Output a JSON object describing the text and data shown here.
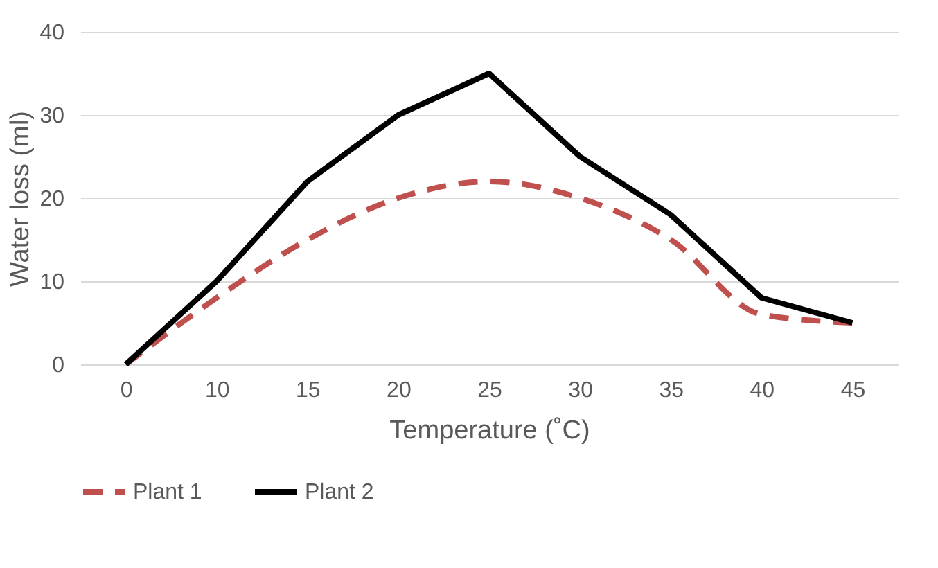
{
  "chart_data": {
    "type": "line",
    "xlabel": "Temperature (˚C)",
    "ylabel": "Water loss (ml)",
    "categories": [
      "0",
      "10",
      "15",
      "20",
      "25",
      "30",
      "35",
      "40",
      "45"
    ],
    "series": [
      {
        "name": "Plant 1",
        "color": "#c0504d",
        "line_style": "dashed",
        "values": [
          0,
          8,
          15,
          20,
          22,
          20,
          15,
          6,
          5
        ]
      },
      {
        "name": "Plant 2",
        "color": "#000000",
        "line_style": "solid",
        "values": [
          0,
          10,
          22,
          30,
          35,
          25,
          18,
          8,
          5
        ]
      }
    ],
    "ylim": [
      0,
      40
    ],
    "yticks": [
      0,
      10,
      20,
      30,
      40
    ],
    "grid": "y",
    "legend": "bottom",
    "marker": "none"
  }
}
